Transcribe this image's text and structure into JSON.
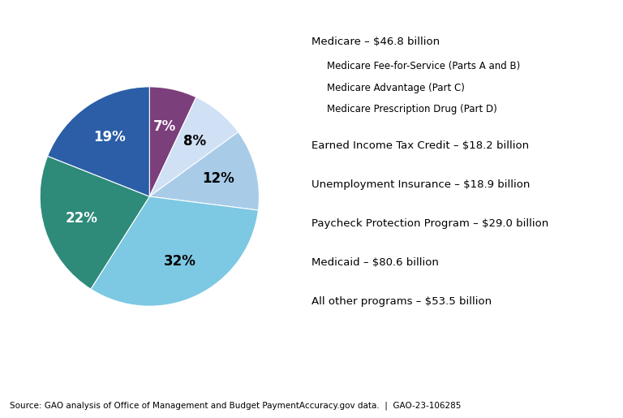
{
  "chart_data": {
    "type": "pie",
    "values": [
      7,
      8,
      12,
      32,
      22,
      19
    ],
    "value_labels": [
      "7%",
      "8%",
      "12%",
      "32%",
      "22%",
      "19%"
    ],
    "data_labels": true,
    "colors": [
      "#7B3F7B",
      "#D0E0F5",
      "#A8CCE8",
      "#7DC8E3",
      "#2E8B7A",
      "#2B5EA7"
    ],
    "annotations": [
      {
        "text": "Medicare – $46.8 billion",
        "subitems": [
          "Medicare Fee-for-Service (Parts A and B)",
          "Medicare Advantage (Part C)",
          "Medicare Prescription Drug (Part D)"
        ]
      },
      {
        "text": "Earned Income Tax Credit – $18.2 billion",
        "subitems": []
      },
      {
        "text": "Unemployment Insurance – $18.9 billion",
        "subitems": []
      },
      {
        "text": "Paycheck Protection Program – $29.0 billion",
        "subitems": []
      },
      {
        "text": "Medicaid – $80.6 billion",
        "subitems": []
      },
      {
        "text": "All other programs – $53.5 billion",
        "subitems": []
      }
    ],
    "source": "Source: GAO analysis of Office of Management and Budget PaymentAccuracy.gov data.  |  GAO-23-106285"
  }
}
